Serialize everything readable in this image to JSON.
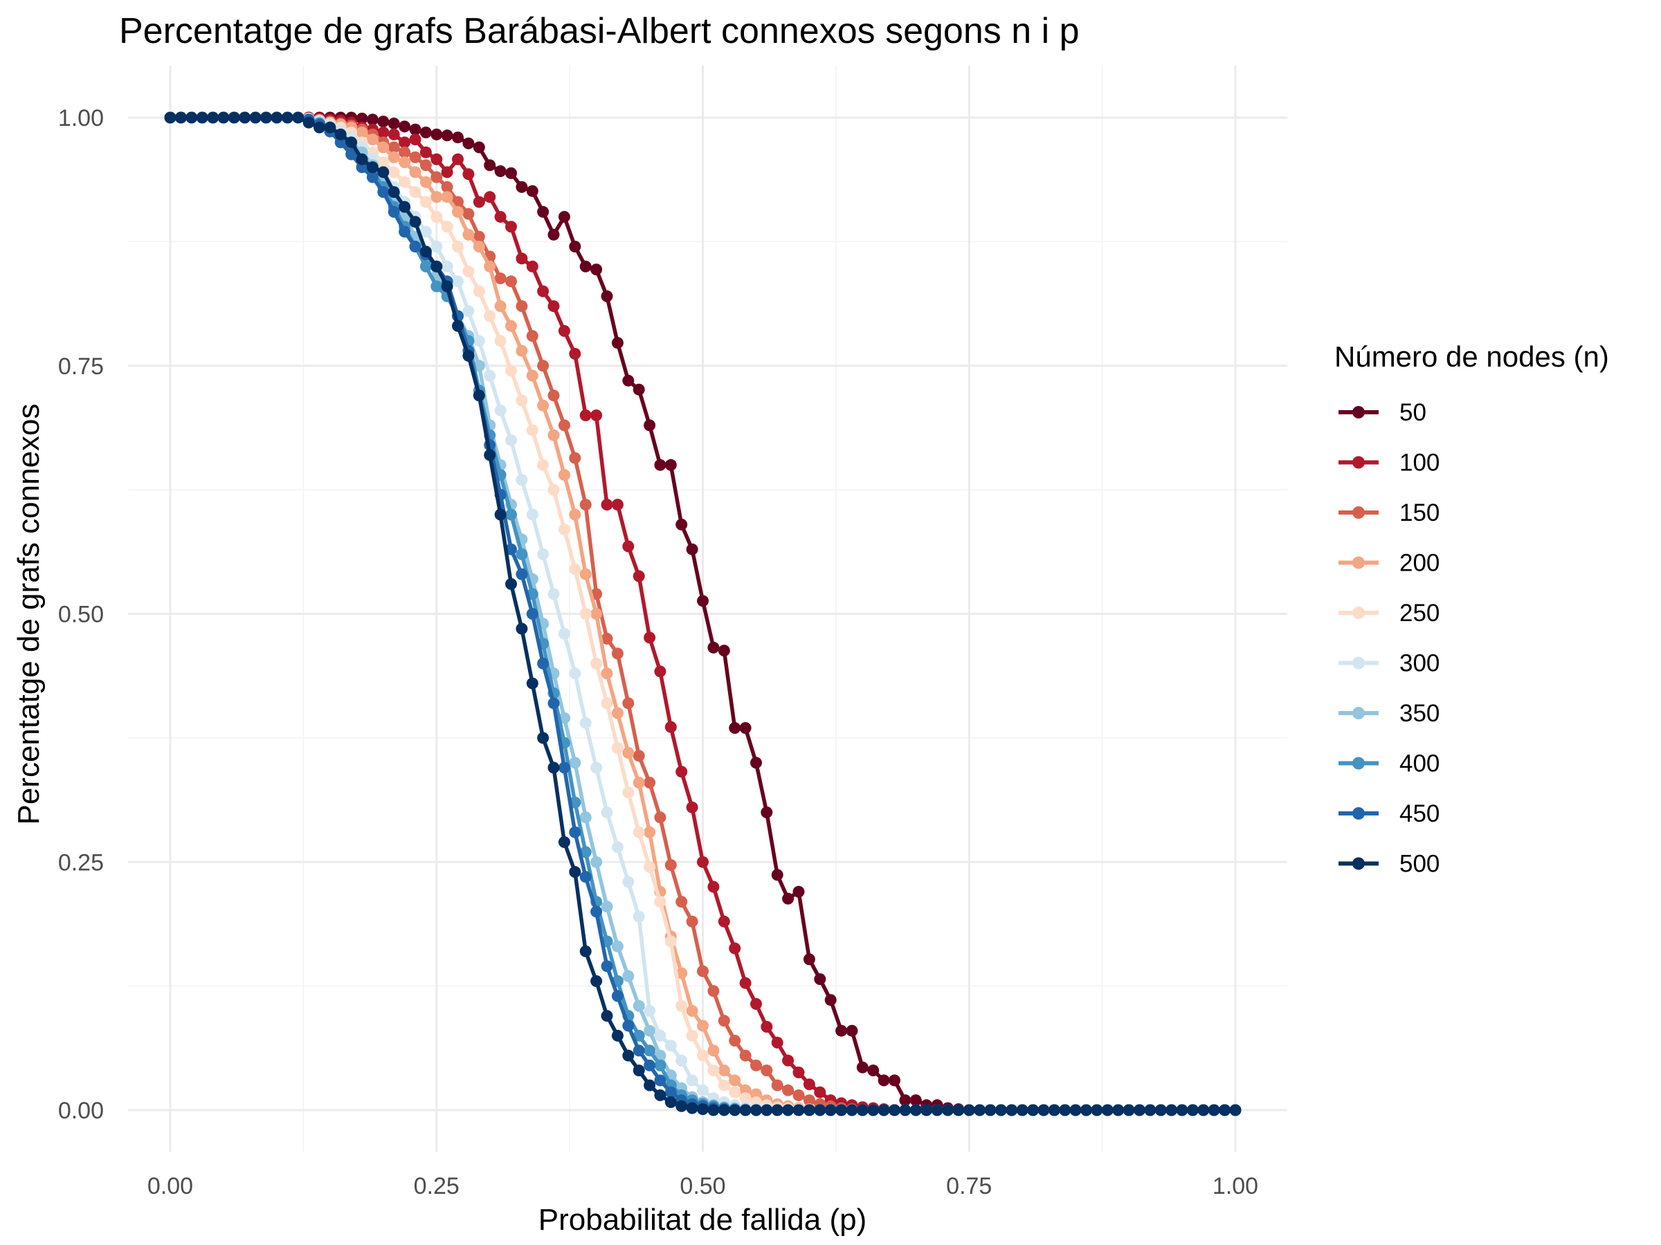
{
  "chart_data": {
    "type": "line",
    "title": "Percentatge de grafs Barábasi-Albert connexos segons n i p",
    "xlabel": "Probabilitat de fallida (p)",
    "ylabel": "Percentatge de grafs connexos",
    "xlim": [
      0,
      1
    ],
    "ylim": [
      0,
      1
    ],
    "x_ticks": [
      "0.00",
      "0.25",
      "0.50",
      "0.75",
      "1.00"
    ],
    "y_ticks": [
      "0.00",
      "0.25",
      "0.50",
      "0.75",
      "1.00"
    ],
    "grid": true,
    "legend": {
      "title": "Número de nodes (n)",
      "position": "right"
    },
    "x": [
      0.0,
      0.01,
      0.02,
      0.03,
      0.04,
      0.05,
      0.06,
      0.07,
      0.08,
      0.09,
      0.1,
      0.11,
      0.12,
      0.13,
      0.14,
      0.15,
      0.16,
      0.17,
      0.18,
      0.19,
      0.2,
      0.21,
      0.22,
      0.23,
      0.24,
      0.25,
      0.26,
      0.27,
      0.28,
      0.29,
      0.3,
      0.31,
      0.32,
      0.33,
      0.34,
      0.35,
      0.36,
      0.37,
      0.38,
      0.39,
      0.4,
      0.41,
      0.42,
      0.43,
      0.44,
      0.45,
      0.46,
      0.47,
      0.48,
      0.49,
      0.5,
      0.51,
      0.52,
      0.53,
      0.54,
      0.55,
      0.56,
      0.57,
      0.58,
      0.59,
      0.6,
      0.61,
      0.62,
      0.63,
      0.64,
      0.65,
      0.66,
      0.67,
      0.68,
      0.69,
      0.7,
      0.71,
      0.72,
      0.73,
      0.74,
      0.75,
      0.76,
      0.77,
      0.78,
      0.79,
      0.8,
      0.81,
      0.82,
      0.83,
      0.84,
      0.85,
      0.86,
      0.87,
      0.88,
      0.89,
      0.9,
      0.91,
      0.92,
      0.93,
      0.94,
      0.95,
      0.96,
      0.97,
      0.98,
      0.99,
      1.0
    ],
    "series": [
      {
        "name": "50",
        "color": "#67001f",
        "values": [
          1,
          1,
          1,
          1,
          1,
          1,
          1,
          1,
          1,
          1,
          1,
          1,
          1,
          1,
          1,
          1,
          1,
          1,
          0.999,
          0.998,
          0.996,
          0.994,
          0.991,
          0.988,
          0.985,
          0.983,
          0.982,
          0.98,
          0.974,
          0.97,
          0.952,
          0.946,
          0.944,
          0.93,
          0.926,
          0.905,
          0.882,
          0.9,
          0.87,
          0.85,
          0.847,
          0.82,
          0.773,
          0.735,
          0.726,
          0.69,
          0.65,
          0.65,
          0.59,
          0.565,
          0.513,
          0.466,
          0.463,
          0.385,
          0.385,
          0.35,
          0.3,
          0.237,
          0.213,
          0.22,
          0.152,
          0.132,
          0.111,
          0.08,
          0.08,
          0.043,
          0.04,
          0.03,
          0.03,
          0.01,
          0.01,
          0.005,
          0.005,
          0.002,
          0.001,
          0,
          0,
          0,
          0,
          0,
          0,
          0,
          0,
          0,
          0,
          0,
          0,
          0,
          0,
          0,
          0,
          0,
          0,
          0,
          0,
          0,
          0,
          0,
          0,
          0,
          0
        ]
      },
      {
        "name": "100",
        "color": "#b2182b",
        "values": [
          1,
          1,
          1,
          1,
          1,
          1,
          1,
          1,
          1,
          1,
          1,
          1,
          1,
          1,
          0.999,
          0.998,
          0.997,
          0.995,
          0.99,
          0.988,
          0.985,
          0.983,
          0.975,
          0.978,
          0.965,
          0.958,
          0.945,
          0.958,
          0.943,
          0.915,
          0.92,
          0.9,
          0.89,
          0.858,
          0.85,
          0.825,
          0.81,
          0.785,
          0.762,
          0.7,
          0.7,
          0.61,
          0.61,
          0.568,
          0.538,
          0.476,
          0.442,
          0.386,
          0.341,
          0.305,
          0.25,
          0.225,
          0.19,
          0.163,
          0.128,
          0.107,
          0.084,
          0.068,
          0.05,
          0.038,
          0.026,
          0.018,
          0.01,
          0.007,
          0.005,
          0.003,
          0.002,
          0.001,
          0,
          0,
          0,
          0,
          0,
          0,
          0,
          0,
          0,
          0,
          0,
          0,
          0,
          0,
          0,
          0,
          0,
          0,
          0,
          0,
          0,
          0,
          0,
          0,
          0,
          0,
          0,
          0,
          0,
          0,
          0,
          0,
          0
        ]
      },
      {
        "name": "150",
        "color": "#d6604d",
        "values": [
          1,
          1,
          1,
          1,
          1,
          1,
          1,
          1,
          1,
          1,
          1,
          1,
          1,
          0.999,
          0.998,
          0.996,
          0.994,
          0.992,
          0.988,
          0.983,
          0.975,
          0.97,
          0.965,
          0.96,
          0.952,
          0.94,
          0.93,
          0.915,
          0.903,
          0.88,
          0.86,
          0.838,
          0.835,
          0.81,
          0.78,
          0.75,
          0.72,
          0.69,
          0.657,
          0.61,
          0.52,
          0.475,
          0.46,
          0.41,
          0.357,
          0.33,
          0.295,
          0.247,
          0.21,
          0.19,
          0.14,
          0.12,
          0.09,
          0.07,
          0.055,
          0.045,
          0.04,
          0.025,
          0.02,
          0.015,
          0.01,
          0.006,
          0.004,
          0.002,
          0.001,
          0,
          0,
          0,
          0,
          0,
          0,
          0,
          0,
          0,
          0,
          0,
          0,
          0,
          0,
          0,
          0,
          0,
          0,
          0,
          0,
          0,
          0,
          0,
          0,
          0,
          0,
          0,
          0,
          0,
          0,
          0,
          0,
          0,
          0,
          0,
          0
        ]
      },
      {
        "name": "200",
        "color": "#f4a582",
        "values": [
          1,
          1,
          1,
          1,
          1,
          1,
          1,
          1,
          1,
          1,
          1,
          1,
          1,
          0.999,
          0.997,
          0.995,
          0.993,
          0.99,
          0.985,
          0.978,
          0.97,
          0.96,
          0.955,
          0.945,
          0.935,
          0.92,
          0.92,
          0.905,
          0.882,
          0.87,
          0.85,
          0.81,
          0.79,
          0.765,
          0.74,
          0.71,
          0.68,
          0.64,
          0.6,
          0.54,
          0.5,
          0.44,
          0.4,
          0.36,
          0.33,
          0.28,
          0.22,
          0.175,
          0.138,
          0.1,
          0.085,
          0.06,
          0.04,
          0.03,
          0.02,
          0.016,
          0.01,
          0.006,
          0.004,
          0.002,
          0.001,
          0,
          0,
          0,
          0,
          0,
          0,
          0,
          0,
          0,
          0,
          0,
          0,
          0,
          0,
          0,
          0,
          0,
          0,
          0,
          0,
          0,
          0,
          0,
          0,
          0,
          0,
          0,
          0,
          0,
          0,
          0,
          0,
          0,
          0,
          0,
          0,
          0,
          0,
          0,
          0
        ]
      },
      {
        "name": "250",
        "color": "#fddbc7",
        "values": [
          1,
          1,
          1,
          1,
          1,
          1,
          1,
          1,
          1,
          1,
          1,
          1,
          1,
          0.999,
          0.997,
          0.994,
          0.99,
          0.985,
          0.975,
          0.965,
          0.955,
          0.945,
          0.935,
          0.925,
          0.915,
          0.9,
          0.89,
          0.87,
          0.845,
          0.825,
          0.8,
          0.775,
          0.745,
          0.715,
          0.685,
          0.65,
          0.625,
          0.585,
          0.545,
          0.5,
          0.45,
          0.41,
          0.365,
          0.32,
          0.28,
          0.245,
          0.21,
          0.17,
          0.105,
          0.075,
          0.055,
          0.04,
          0.025,
          0.018,
          0.012,
          0.008,
          0.005,
          0.003,
          0.002,
          0.001,
          0,
          0,
          0,
          0,
          0,
          0,
          0,
          0,
          0,
          0,
          0,
          0,
          0,
          0,
          0,
          0,
          0,
          0,
          0,
          0,
          0,
          0,
          0,
          0,
          0,
          0,
          0,
          0,
          0,
          0,
          0,
          0,
          0,
          0,
          0,
          0,
          0,
          0,
          0,
          0,
          0
        ]
      },
      {
        "name": "300",
        "color": "#d1e5f0",
        "values": [
          1,
          1,
          1,
          1,
          1,
          1,
          1,
          1,
          1,
          1,
          1,
          1,
          1,
          0.999,
          0.996,
          0.992,
          0.987,
          0.98,
          0.97,
          0.958,
          0.945,
          0.93,
          0.915,
          0.9,
          0.885,
          0.87,
          0.85,
          0.835,
          0.805,
          0.775,
          0.74,
          0.705,
          0.675,
          0.635,
          0.6,
          0.56,
          0.52,
          0.48,
          0.44,
          0.39,
          0.345,
          0.3,
          0.265,
          0.23,
          0.195,
          0.1,
          0.075,
          0.065,
          0.05,
          0.03,
          0.02,
          0.012,
          0.008,
          0.005,
          0.003,
          0.002,
          0.001,
          0,
          0,
          0,
          0,
          0,
          0,
          0,
          0,
          0,
          0,
          0,
          0,
          0,
          0,
          0,
          0,
          0,
          0,
          0,
          0,
          0,
          0,
          0,
          0,
          0,
          0,
          0,
          0,
          0,
          0,
          0,
          0,
          0,
          0,
          0,
          0,
          0,
          0,
          0,
          0,
          0,
          0,
          0,
          0
        ]
      },
      {
        "name": "350",
        "color": "#92c5de",
        "values": [
          1,
          1,
          1,
          1,
          1,
          1,
          1,
          1,
          1,
          1,
          1,
          1,
          1,
          0.998,
          0.995,
          0.99,
          0.983,
          0.975,
          0.965,
          0.952,
          0.938,
          0.92,
          0.9,
          0.88,
          0.86,
          0.84,
          0.82,
          0.8,
          0.78,
          0.75,
          0.69,
          0.65,
          0.61,
          0.575,
          0.535,
          0.49,
          0.44,
          0.395,
          0.35,
          0.295,
          0.25,
          0.205,
          0.165,
          0.135,
          0.105,
          0.08,
          0.055,
          0.035,
          0.022,
          0.013,
          0.008,
          0.005,
          0.003,
          0.002,
          0.001,
          0,
          0,
          0,
          0,
          0,
          0,
          0,
          0,
          0,
          0,
          0,
          0,
          0,
          0,
          0,
          0,
          0,
          0,
          0,
          0,
          0,
          0,
          0,
          0,
          0,
          0,
          0,
          0,
          0,
          0,
          0,
          0,
          0,
          0,
          0,
          0,
          0,
          0,
          0,
          0,
          0,
          0,
          0,
          0,
          0,
          0
        ]
      },
      {
        "name": "400",
        "color": "#4393c3",
        "values": [
          1,
          1,
          1,
          1,
          1,
          1,
          1,
          1,
          1,
          1,
          1,
          1,
          1,
          0.998,
          0.994,
          0.988,
          0.98,
          0.97,
          0.958,
          0.945,
          0.93,
          0.91,
          0.89,
          0.87,
          0.85,
          0.83,
          0.82,
          0.8,
          0.775,
          0.725,
          0.68,
          0.64,
          0.6,
          0.56,
          0.52,
          0.47,
          0.42,
          0.37,
          0.31,
          0.26,
          0.21,
          0.17,
          0.13,
          0.095,
          0.075,
          0.06,
          0.045,
          0.025,
          0.015,
          0.01,
          0.006,
          0.004,
          0.002,
          0.001,
          0,
          0,
          0,
          0,
          0,
          0,
          0,
          0,
          0,
          0,
          0,
          0,
          0,
          0,
          0,
          0,
          0,
          0,
          0,
          0,
          0,
          0,
          0,
          0,
          0,
          0,
          0,
          0,
          0,
          0,
          0,
          0,
          0,
          0,
          0,
          0,
          0,
          0,
          0,
          0,
          0,
          0,
          0,
          0,
          0,
          0,
          0
        ]
      },
      {
        "name": "450",
        "color": "#2166ac",
        "values": [
          1,
          1,
          1,
          1,
          1,
          1,
          1,
          1,
          1,
          1,
          1,
          1,
          1,
          0.998,
          0.993,
          0.986,
          0.975,
          0.963,
          0.95,
          0.94,
          0.925,
          0.905,
          0.885,
          0.87,
          0.862,
          0.85,
          0.835,
          0.8,
          0.765,
          0.72,
          0.67,
          0.62,
          0.565,
          0.54,
          0.5,
          0.45,
          0.41,
          0.345,
          0.28,
          0.235,
          0.2,
          0.145,
          0.115,
          0.085,
          0.06,
          0.045,
          0.03,
          0.018,
          0.01,
          0.006,
          0.004,
          0.002,
          0.001,
          0,
          0,
          0,
          0,
          0,
          0,
          0,
          0,
          0,
          0,
          0,
          0,
          0,
          0,
          0,
          0,
          0,
          0,
          0,
          0,
          0,
          0,
          0,
          0,
          0,
          0,
          0,
          0,
          0,
          0,
          0,
          0,
          0,
          0,
          0,
          0,
          0,
          0,
          0,
          0,
          0,
          0,
          0,
          0,
          0,
          0,
          0,
          0
        ]
      },
      {
        "name": "500",
        "color": "#053061",
        "values": [
          1,
          1,
          1,
          1,
          1,
          1,
          1,
          1,
          1,
          1,
          1,
          1,
          1,
          0.995,
          0.99,
          0.99,
          0.983,
          0.975,
          0.958,
          0.95,
          0.945,
          0.925,
          0.91,
          0.895,
          0.865,
          0.85,
          0.83,
          0.79,
          0.76,
          0.72,
          0.66,
          0.6,
          0.53,
          0.485,
          0.43,
          0.375,
          0.345,
          0.27,
          0.24,
          0.16,
          0.13,
          0.095,
          0.075,
          0.055,
          0.04,
          0.025,
          0.015,
          0.008,
          0.004,
          0.002,
          0.001,
          0,
          0,
          0,
          0,
          0,
          0,
          0,
          0,
          0,
          0,
          0,
          0,
          0,
          0,
          0,
          0,
          0,
          0,
          0,
          0,
          0,
          0,
          0,
          0,
          0,
          0,
          0,
          0,
          0,
          0,
          0,
          0,
          0,
          0,
          0,
          0,
          0,
          0,
          0,
          0,
          0,
          0,
          0,
          0,
          0,
          0,
          0,
          0,
          0,
          0
        ]
      }
    ]
  }
}
